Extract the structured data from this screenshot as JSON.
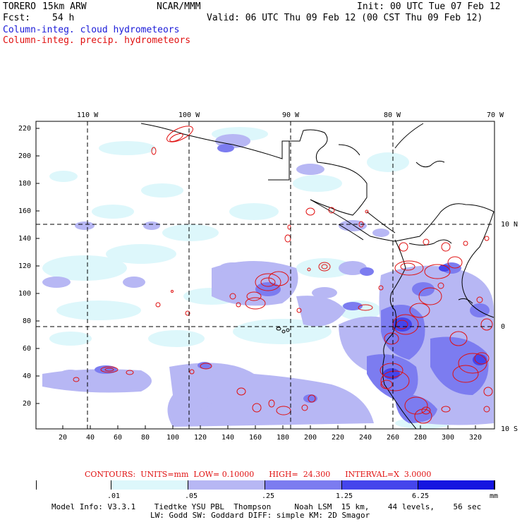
{
  "header": {
    "model": "TORERO",
    "resolution": "15km ARW",
    "org": "NCAR/MMM",
    "init": "Init: 00 UTC Tue 07 Feb 12",
    "fcst_label": "Fcst:",
    "fcst_value": "54 h",
    "valid": "Valid: 06 UTC Thu 09 Feb 12 (00 CST Thu 09 Feb 12)"
  },
  "legend": {
    "cloud": "Column-integ. cloud hydrometeors",
    "precip": "Column-integ. precip. hydrometeors",
    "cloud_color": "#1a1ad8",
    "precip_color": "#e01010"
  },
  "map": {
    "top_longitudes": [
      "110 W",
      "100 W",
      "90 W",
      "80 W",
      "70 W"
    ],
    "right_latitudes": [
      "10 N",
      "0",
      "10 S"
    ],
    "left_ticks": [
      "220",
      "200",
      "180",
      "160",
      "140",
      "120",
      "100",
      "80",
      "60",
      "40",
      "20"
    ],
    "bottom_ticks": [
      "20",
      "40",
      "60",
      "80",
      "100",
      "120",
      "140",
      "160",
      "180",
      "200",
      "220",
      "240",
      "260",
      "280",
      "300",
      "320"
    ]
  },
  "contours": {
    "text": "CONTOURS:  UNITS=mm  LOW= 0.10000      HIGH=  24.300      INTERVAL=X  3.0000"
  },
  "colorbar": {
    "labels": [
      ".01",
      ".05",
      ".25",
      "1.25",
      "6.25"
    ],
    "unit": "mm",
    "colors": [
      "#ffffff",
      "#ddf7fb",
      "#b7b7f4",
      "#7c7cf0",
      "#4545ec",
      "#1515e0"
    ]
  },
  "footer": {
    "line1": "Model Info: V3.3.1    Tiedtke YSU PBL  Thompson     Noah LSM  15 km,    44 levels,    56 sec",
    "line2": "LW: Godd SW: Goddard DIFF: simple KM: 2D Smagor"
  }
}
